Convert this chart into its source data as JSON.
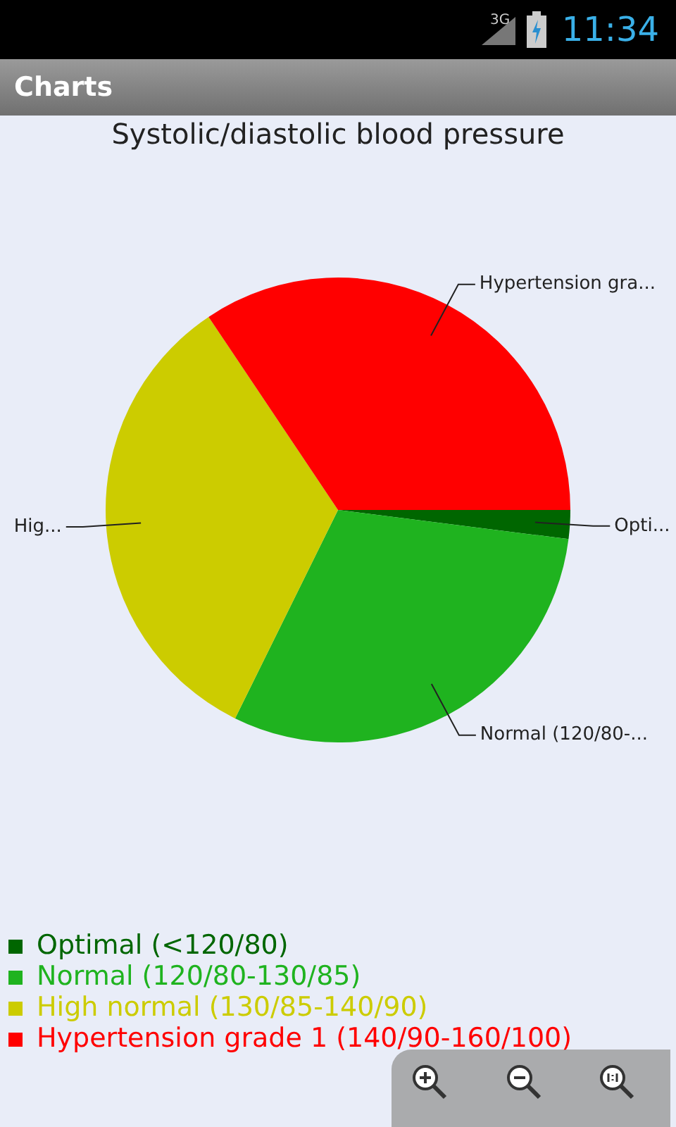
{
  "chart_data": {
    "type": "pie",
    "title": "Systolic/diastolic blood pressure",
    "categories": [
      "Optimal (<120/80)",
      "Normal (120/80-130/85)",
      "High normal (130/85-140/90)",
      "Hypertension grade 1 (140/90-160/100)"
    ],
    "values": [
      2,
      30.3,
      33.3,
      34.4
    ],
    "colors": [
      "#006600",
      "#1fb31f",
      "#cccc00",
      "#ff0000"
    ],
    "value_labels": [
      "Opti...",
      "Normal (120/80-...",
      "Hig...",
      "Hypertension gra..."
    ],
    "legend": "bottom",
    "annotations": [
      "Charts",
      "3G",
      "11:34"
    ]
  }
}
